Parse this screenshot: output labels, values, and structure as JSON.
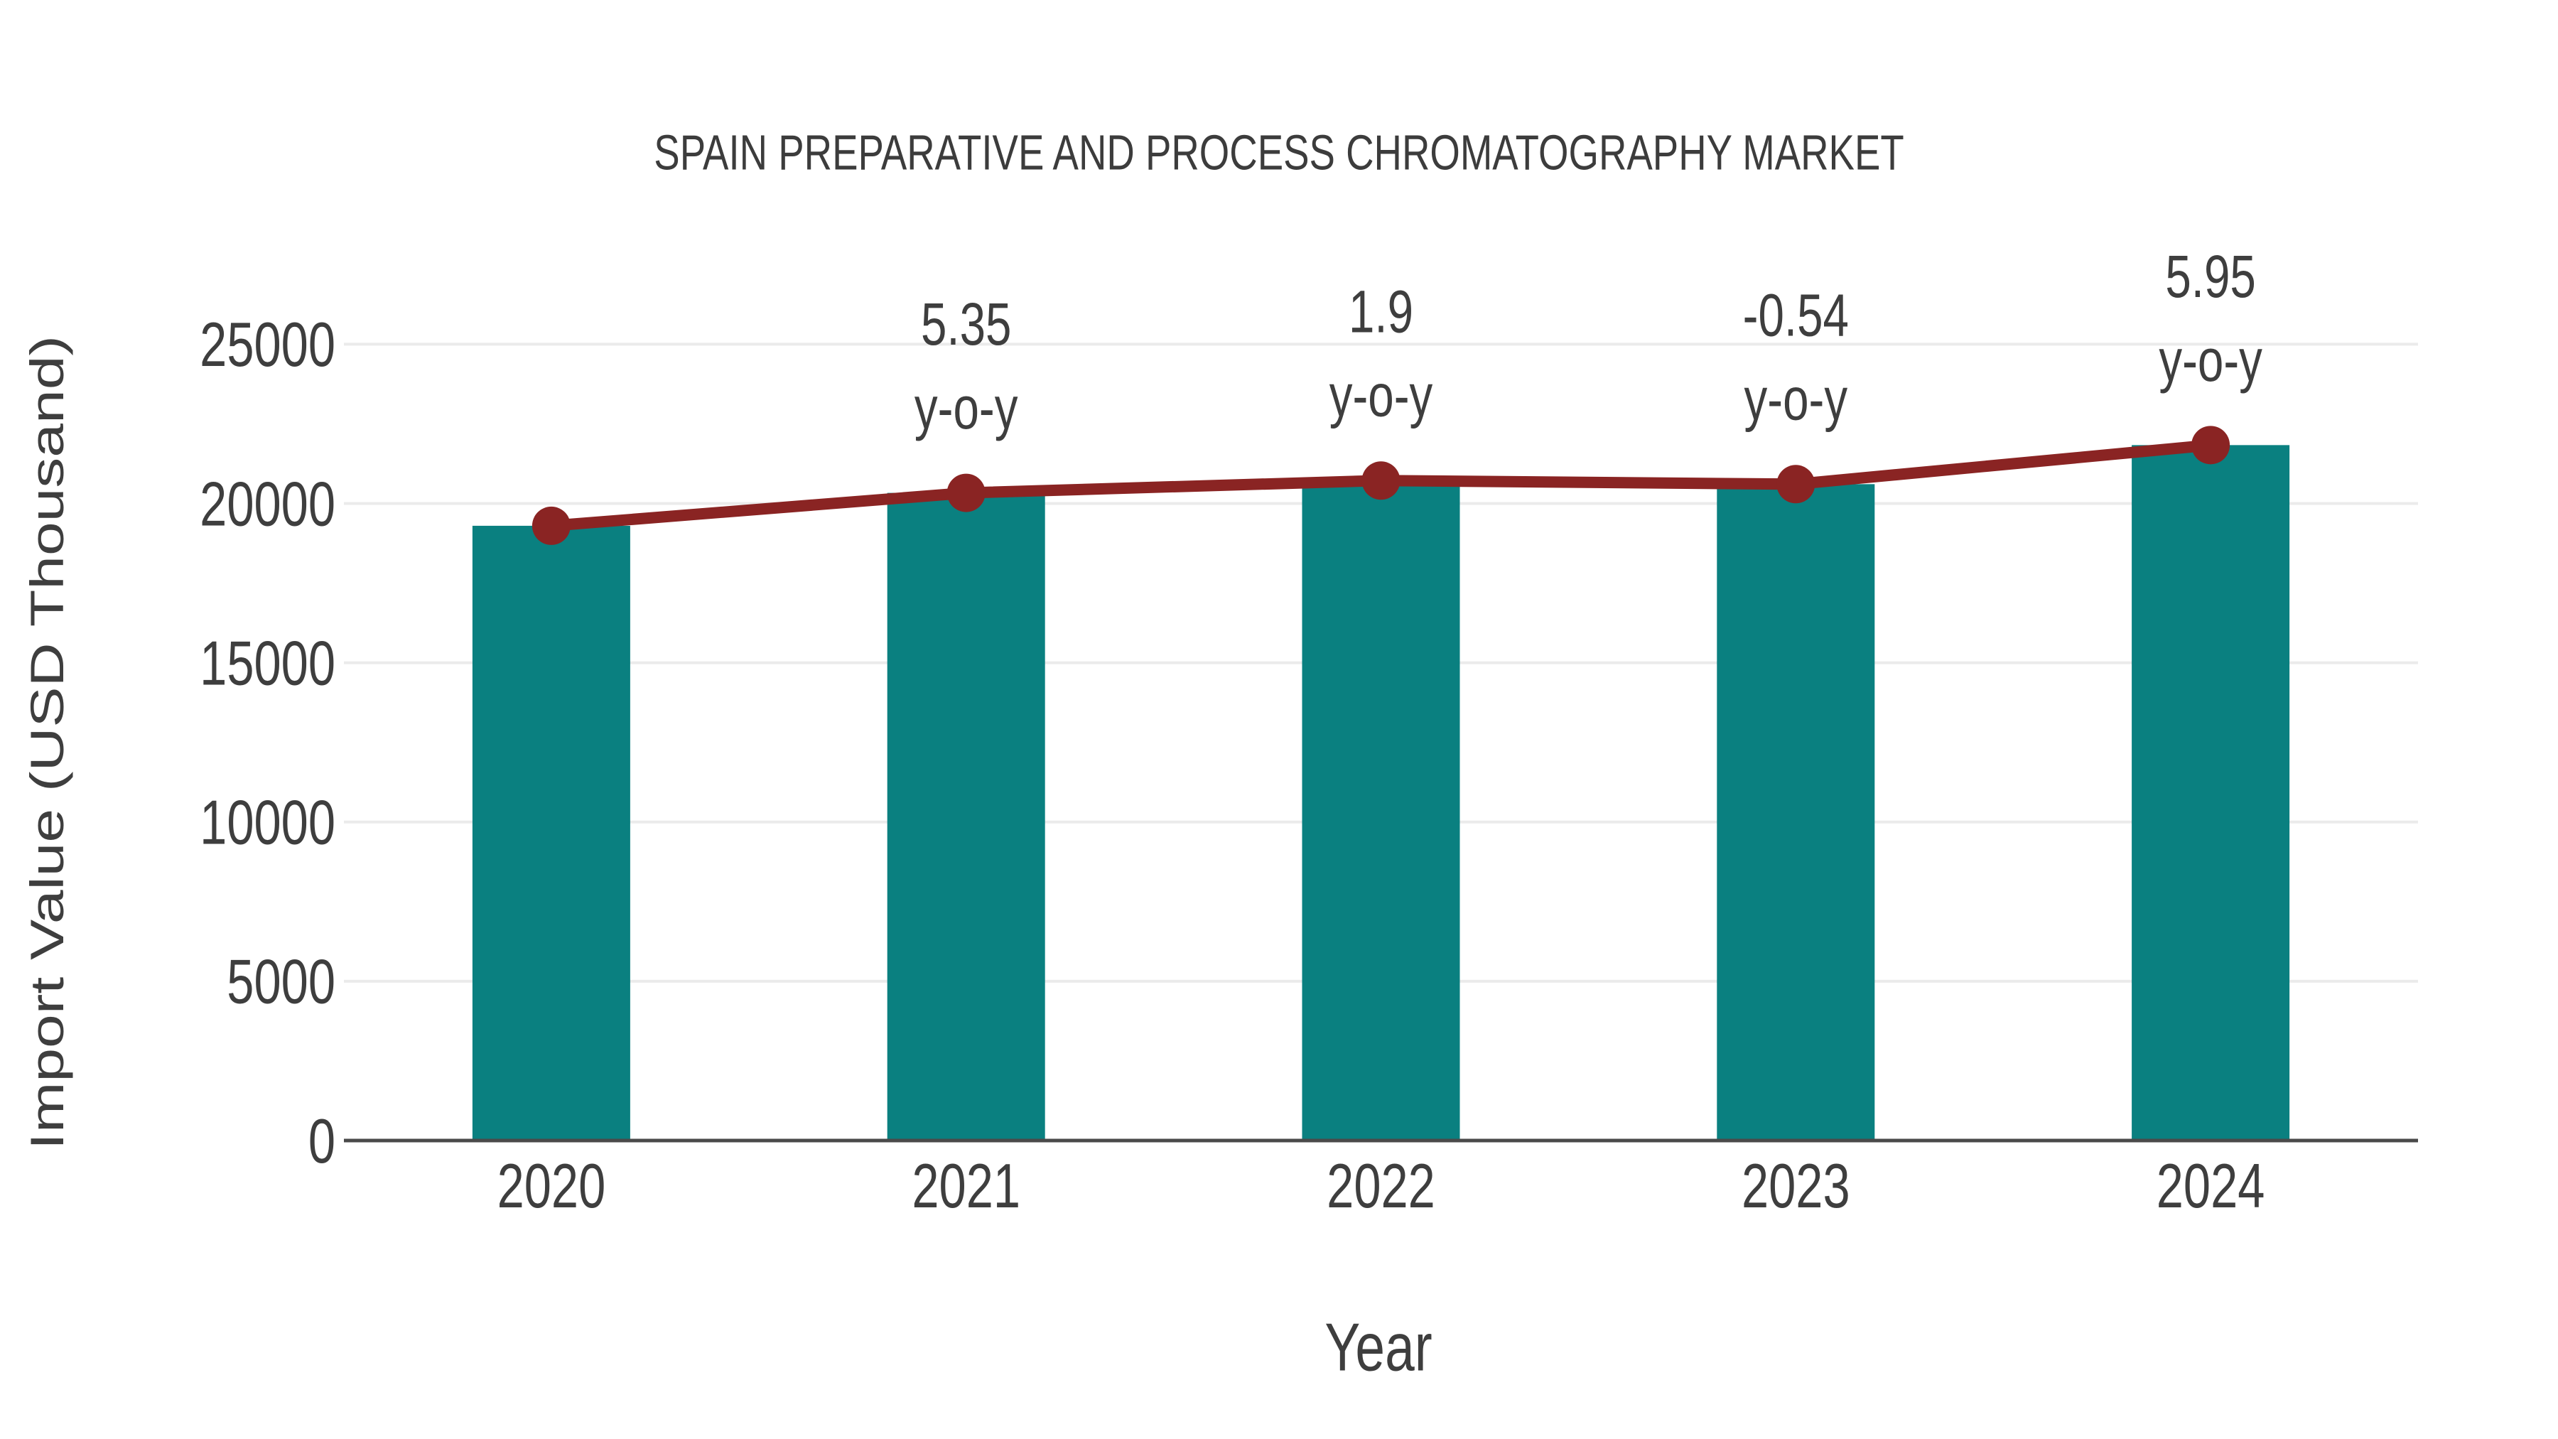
{
  "chart_data": {
    "type": "bar",
    "title": "SPAIN PREPARATIVE AND PROCESS CHROMATOGRAPHY MARKET",
    "xlabel": "Year",
    "ylabel": "Import Value (USD Thousand)",
    "categories": [
      "2020",
      "2021",
      "2022",
      "2023",
      "2024"
    ],
    "series": [
      {
        "name": "import-value-bars",
        "type": "bar",
        "values": [
          19300,
          20333,
          20719,
          20607,
          21833
        ]
      },
      {
        "name": "import-value-trend",
        "type": "line",
        "values": [
          19300,
          20333,
          20719,
          20607,
          21833
        ]
      }
    ],
    "annotations": [
      {
        "category": "2021",
        "label": "5.35",
        "sublabel": "y-o-y"
      },
      {
        "category": "2022",
        "label": "1.9",
        "sublabel": "y-o-y"
      },
      {
        "category": "2023",
        "label": "-0.54",
        "sublabel": "y-o-y"
      },
      {
        "category": "2024",
        "label": "5.95",
        "sublabel": "y-o-y"
      }
    ],
    "yticks": [
      0,
      5000,
      10000,
      15000,
      20000,
      25000
    ],
    "ylim": [
      0,
      25000
    ],
    "grid": true,
    "legend": false
  },
  "colors": {
    "bar": "#0A8080",
    "line": "#8A2423",
    "grid": "#EBEBEB",
    "axis": "#4A4A4A",
    "text": "#3E3E3E",
    "title": "#3C3C3C",
    "background": "#FFFFFF"
  }
}
